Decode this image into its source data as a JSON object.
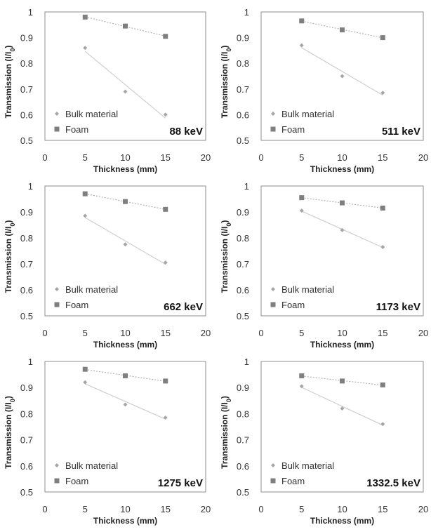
{
  "chart_data": [
    {
      "type": "scatter",
      "title": "",
      "annotation": "88 keV",
      "xlabel": "Thickness (mm)",
      "ylabel": "Transmission (I/I0)",
      "ylabel_main": "Transmission (I/I",
      "ylabel_sub": "0",
      "ylabel_close": ")",
      "xlim": [
        0,
        20
      ],
      "ylim": [
        0.5,
        1
      ],
      "xticks": [
        "0",
        "5",
        "10",
        "15",
        "20"
      ],
      "yticks": [
        "0.5",
        "0.6",
        "0.7",
        "0.8",
        "0.9",
        "1"
      ],
      "legend_position": "bottom-left",
      "series": [
        {
          "name": "Bulk material",
          "marker": "diamond",
          "color": "#a6a6a6",
          "x": [
            5,
            10,
            15
          ],
          "y": [
            0.86,
            0.69,
            0.6
          ]
        },
        {
          "name": "Foam",
          "marker": "square",
          "color": "#7f7f7f",
          "x": [
            5,
            10,
            15
          ],
          "y": [
            0.98,
            0.945,
            0.905
          ]
        }
      ]
    },
    {
      "type": "scatter",
      "title": "",
      "annotation": "511 keV",
      "xlabel": "Thickness (mm)",
      "ylabel": "Transmission (I/I0)",
      "ylabel_main": "Transmission (I/I",
      "ylabel_sub": "0",
      "ylabel_close": ")",
      "xlim": [
        0,
        20
      ],
      "ylim": [
        0.5,
        1
      ],
      "xticks": [
        "0",
        "5",
        "10",
        "15",
        "20"
      ],
      "yticks": [
        "0.5",
        "0.6",
        "0.7",
        "0.8",
        "0.9",
        "1"
      ],
      "legend_position": "bottom-left",
      "series": [
        {
          "name": "Bulk material",
          "marker": "diamond",
          "color": "#a6a6a6",
          "x": [
            5,
            10,
            15
          ],
          "y": [
            0.87,
            0.75,
            0.685
          ]
        },
        {
          "name": "Foam",
          "marker": "square",
          "color": "#7f7f7f",
          "x": [
            5,
            10,
            15
          ],
          "y": [
            0.965,
            0.93,
            0.9
          ]
        }
      ]
    },
    {
      "type": "scatter",
      "title": "",
      "annotation": "662 keV",
      "xlabel": "Thickness (mm)",
      "ylabel": "Transmission (I/I0)",
      "ylabel_main": "Transmission (I/I",
      "ylabel_sub": "0",
      "ylabel_close": ")",
      "xlim": [
        0,
        20
      ],
      "ylim": [
        0.5,
        1
      ],
      "xticks": [
        "0",
        "5",
        "10",
        "15",
        "20"
      ],
      "yticks": [
        "0.5",
        "0.6",
        "0.7",
        "0.8",
        "0.9",
        "1"
      ],
      "legend_position": "bottom-left",
      "series": [
        {
          "name": "Bulk material",
          "marker": "diamond",
          "color": "#a6a6a6",
          "x": [
            5,
            10,
            15
          ],
          "y": [
            0.885,
            0.775,
            0.705
          ]
        },
        {
          "name": "Foam",
          "marker": "square",
          "color": "#7f7f7f",
          "x": [
            5,
            10,
            15
          ],
          "y": [
            0.97,
            0.94,
            0.91
          ]
        }
      ]
    },
    {
      "type": "scatter",
      "title": "",
      "annotation": "1173 keV",
      "xlabel": "Thickness (mm)",
      "ylabel": "Transmission (I/I0)",
      "ylabel_main": "Transmission (I/I",
      "ylabel_sub": "0",
      "ylabel_close": ")",
      "xlim": [
        0,
        20
      ],
      "ylim": [
        0.5,
        1
      ],
      "xticks": [
        "0",
        "5",
        "10",
        "15",
        "20"
      ],
      "yticks": [
        "0.5",
        "0.6",
        "0.7",
        "0.8",
        "0.9",
        "1"
      ],
      "legend_position": "bottom-left",
      "series": [
        {
          "name": "Bulk material",
          "marker": "diamond",
          "color": "#a6a6a6",
          "x": [
            5,
            10,
            15
          ],
          "y": [
            0.905,
            0.83,
            0.765
          ]
        },
        {
          "name": "Foam",
          "marker": "square",
          "color": "#7f7f7f",
          "x": [
            5,
            10,
            15
          ],
          "y": [
            0.955,
            0.935,
            0.915
          ]
        }
      ]
    },
    {
      "type": "scatter",
      "title": "",
      "annotation": "1275 keV",
      "xlabel": "Thickness (mm)",
      "ylabel": "Transmission (I/I0)",
      "ylabel_main": "Transmission (I/I",
      "ylabel_sub": "0",
      "ylabel_close": ")",
      "xlim": [
        0,
        20
      ],
      "ylim": [
        0.5,
        1
      ],
      "xticks": [
        "0",
        "5",
        "10",
        "15",
        "20"
      ],
      "yticks": [
        "0.5",
        "0.6",
        "0.7",
        "0.8",
        "0.9",
        "1"
      ],
      "legend_position": "bottom-left",
      "series": [
        {
          "name": "Bulk material",
          "marker": "diamond",
          "color": "#a6a6a6",
          "x": [
            5,
            10,
            15
          ],
          "y": [
            0.92,
            0.835,
            0.785
          ]
        },
        {
          "name": "Foam",
          "marker": "square",
          "color": "#7f7f7f",
          "x": [
            5,
            10,
            15
          ],
          "y": [
            0.97,
            0.945,
            0.925
          ]
        }
      ]
    },
    {
      "type": "scatter",
      "title": "",
      "annotation": "1332.5 keV",
      "xlabel": "Thickness (mm)",
      "ylabel": "Transmission (I/I0)",
      "ylabel_main": "Transmission (I/I",
      "ylabel_sub": "0",
      "ylabel_close": ")",
      "xlim": [
        0,
        20
      ],
      "ylim": [
        0.5,
        1
      ],
      "xticks": [
        "0",
        "5",
        "10",
        "15",
        "20"
      ],
      "yticks": [
        "0.5",
        "0.6",
        "0.7",
        "0.8",
        "0.9",
        "1"
      ],
      "legend_position": "bottom-left",
      "series": [
        {
          "name": "Bulk material",
          "marker": "diamond",
          "color": "#a6a6a6",
          "x": [
            5,
            10,
            15
          ],
          "y": [
            0.905,
            0.82,
            0.76
          ]
        },
        {
          "name": "Foam",
          "marker": "square",
          "color": "#7f7f7f",
          "x": [
            5,
            10,
            15
          ],
          "y": [
            0.945,
            0.925,
            0.91
          ]
        }
      ]
    }
  ]
}
